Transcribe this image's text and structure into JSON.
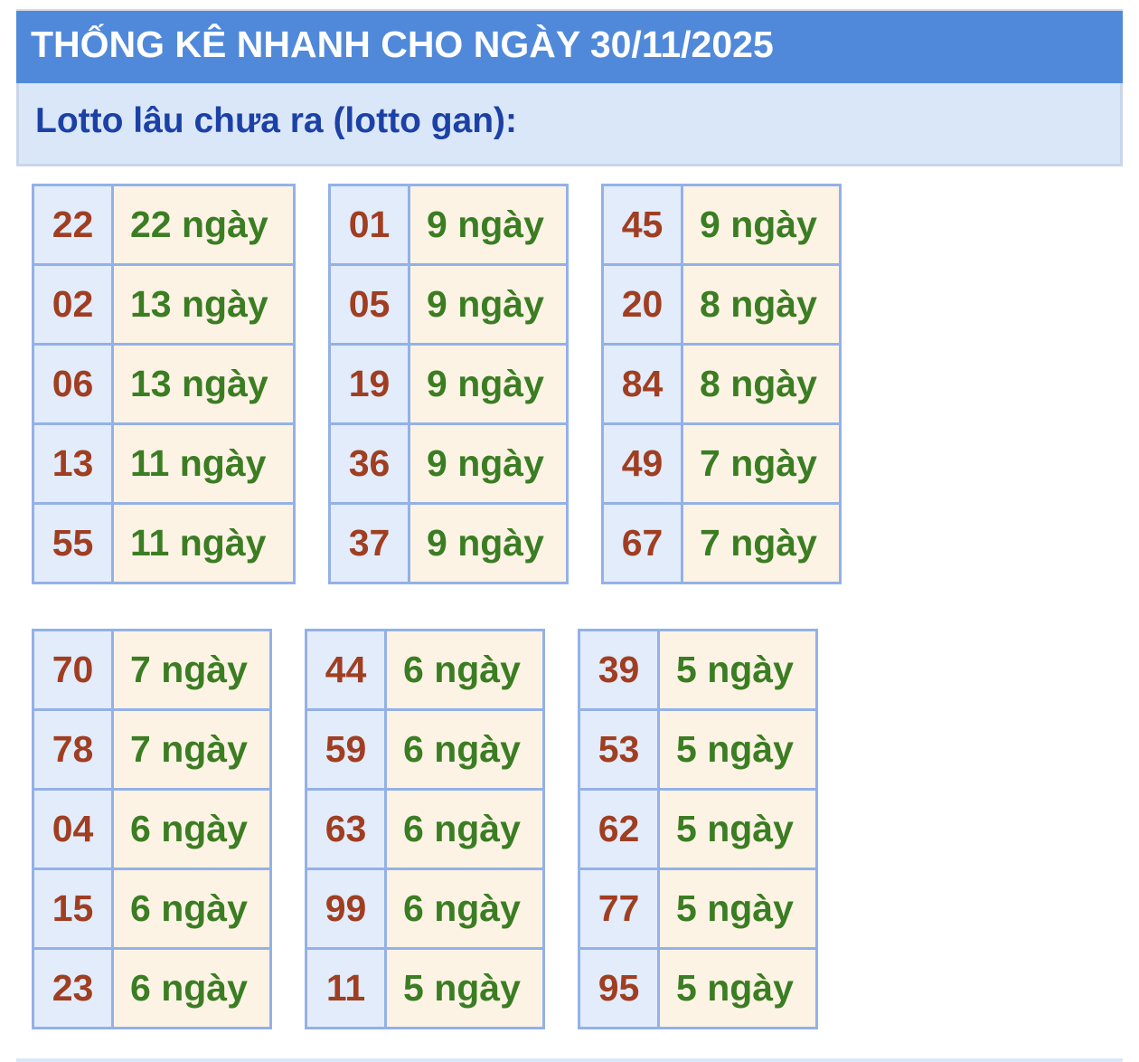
{
  "header": {
    "title": "THỐNG KÊ NHANH CHO NGÀY 30/11/2025"
  },
  "subheader": {
    "title": "Lotto lâu chưa ra (lotto gan):"
  },
  "colors": {
    "header_bg": "#5089da",
    "number": "#a03e22",
    "days": "#3b7d23",
    "subtitle": "#1c41a6"
  },
  "tables": [
    [
      {
        "n": "22",
        "d": "22 ngày"
      },
      {
        "n": "02",
        "d": "13 ngày"
      },
      {
        "n": "06",
        "d": "13 ngày"
      },
      {
        "n": "13",
        "d": "11 ngày"
      },
      {
        "n": "55",
        "d": "11 ngày"
      }
    ],
    [
      {
        "n": "01",
        "d": "9 ngày"
      },
      {
        "n": "05",
        "d": "9 ngày"
      },
      {
        "n": "19",
        "d": "9 ngày"
      },
      {
        "n": "36",
        "d": "9 ngày"
      },
      {
        "n": "37",
        "d": "9 ngày"
      }
    ],
    [
      {
        "n": "45",
        "d": "9 ngày"
      },
      {
        "n": "20",
        "d": "8 ngày"
      },
      {
        "n": "84",
        "d": "8 ngày"
      },
      {
        "n": "49",
        "d": "7 ngày"
      },
      {
        "n": "67",
        "d": "7 ngày"
      }
    ],
    [
      {
        "n": "70",
        "d": "7 ngày"
      },
      {
        "n": "78",
        "d": "7 ngày"
      },
      {
        "n": "04",
        "d": "6 ngày"
      },
      {
        "n": "15",
        "d": "6 ngày"
      },
      {
        "n": "23",
        "d": "6 ngày"
      }
    ],
    [
      {
        "n": "44",
        "d": "6 ngày"
      },
      {
        "n": "59",
        "d": "6 ngày"
      },
      {
        "n": "63",
        "d": "6 ngày"
      },
      {
        "n": "99",
        "d": "6 ngày"
      },
      {
        "n": "11",
        "d": "5 ngày"
      }
    ],
    [
      {
        "n": "39",
        "d": "5 ngày"
      },
      {
        "n": "53",
        "d": "5 ngày"
      },
      {
        "n": "62",
        "d": "5 ngày"
      },
      {
        "n": "77",
        "d": "5 ngày"
      },
      {
        "n": "95",
        "d": "5 ngày"
      }
    ]
  ]
}
